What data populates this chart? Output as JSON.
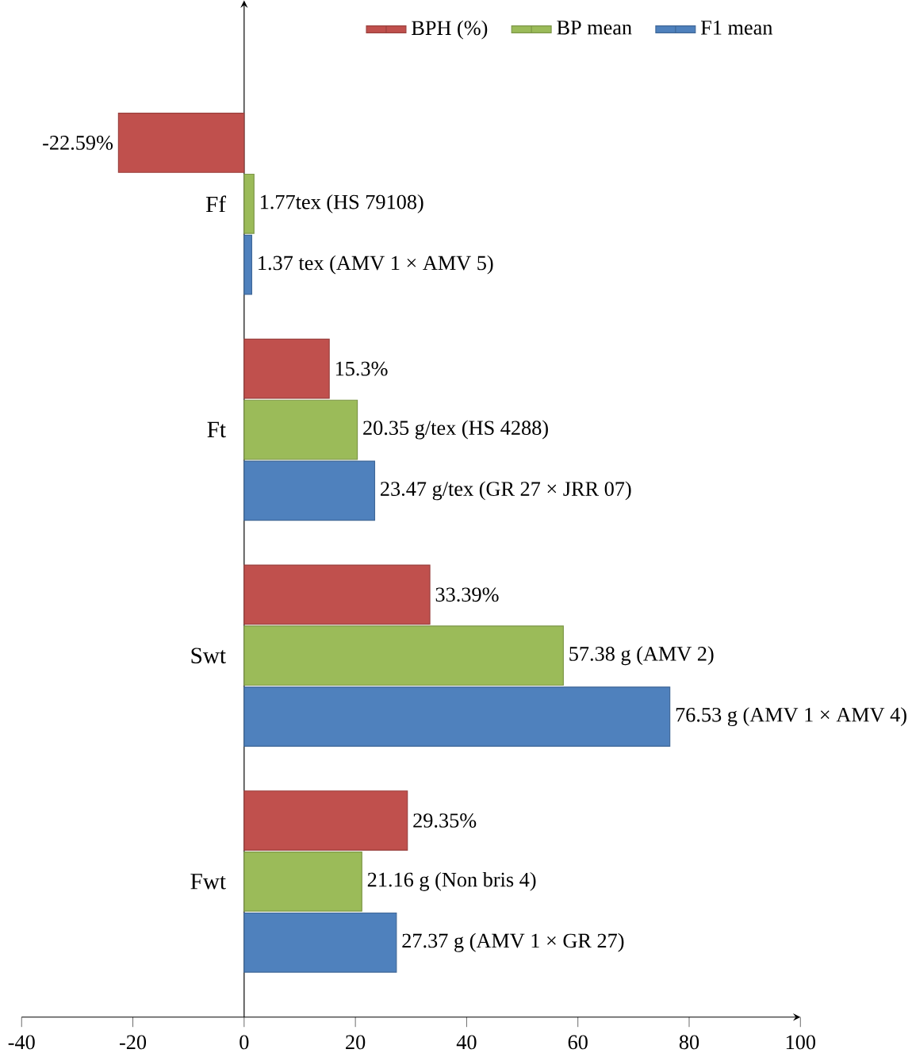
{
  "chart_data": {
    "type": "bar",
    "orientation": "horizontal",
    "categories": [
      "Ff",
      "Ft",
      "Swt",
      "Fwt"
    ],
    "series": [
      {
        "name": "BPH (%)",
        "color": "#c0504d",
        "values": [
          -22.59,
          15.3,
          33.39,
          29.35
        ],
        "value_labels": [
          "-22.59%",
          "15.3%",
          "33.39%",
          "29.35%"
        ]
      },
      {
        "name": "BP mean",
        "color": "#9bbb59",
        "values": [
          1.77,
          20.35,
          57.38,
          21.16
        ],
        "value_labels": [
          "1.77tex  (HS 79108)",
          "20.35 g/tex  (HS 4288)",
          "57.38 g  (AMV 2)",
          "21.16 g  (Non bris 4)"
        ]
      },
      {
        "name": "F1 mean",
        "color": "#4f81bd",
        "values": [
          1.37,
          23.47,
          76.53,
          27.37
        ],
        "value_labels": [
          "1.37 tex  (AMV 1 × AMV 5)",
          "23.47 g/tex  (GR 27 × JRR 07)",
          "76.53 g (AMV 1 × AMV 4)",
          "27.37 g  (AMV 1 × GR 27)"
        ]
      }
    ],
    "xlim": [
      -40,
      100
    ],
    "xticks": [
      -40,
      -20,
      0,
      20,
      40,
      60,
      80,
      100
    ],
    "legend": "top right"
  }
}
